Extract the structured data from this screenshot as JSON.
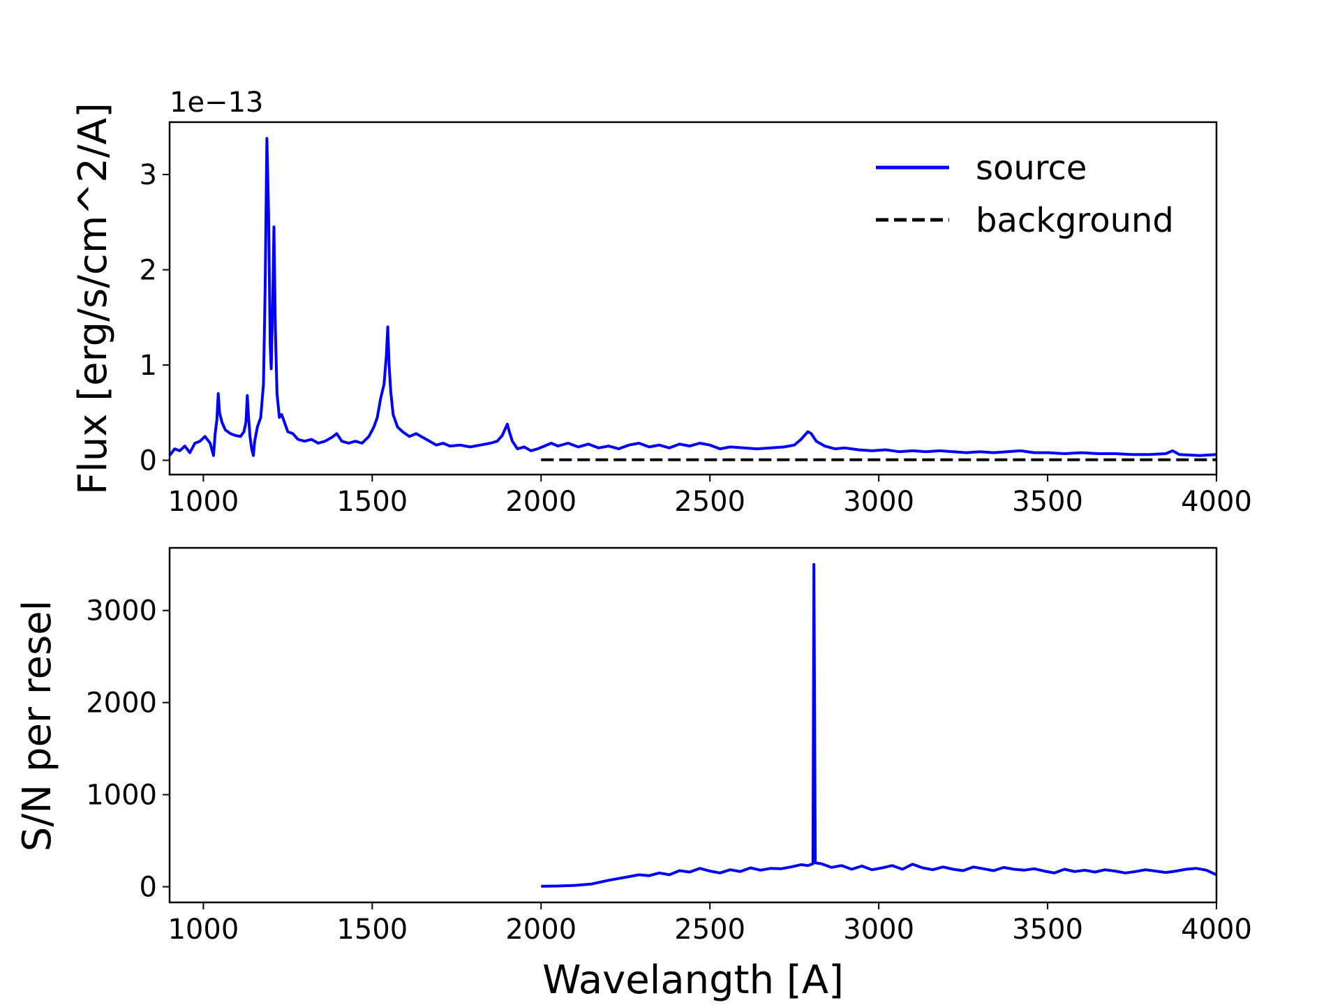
{
  "chart_data": [
    {
      "type": "line",
      "offset_label": "1e−13",
      "xlabel": "",
      "ylabel": "Flux [erg/s/cm^2/A]",
      "xlim": [
        900,
        4000
      ],
      "ylim": [
        -0.15,
        3.55
      ],
      "xticks": [
        1000,
        1500,
        2000,
        2500,
        3000,
        3500,
        4000
      ],
      "xtick_labels": [
        "1000",
        "1500",
        "2000",
        "2500",
        "3000",
        "3500",
        "4000"
      ],
      "yticks": [
        0,
        1,
        2,
        3
      ],
      "ytick_labels": [
        "0",
        "1",
        "2",
        "3"
      ],
      "grid": false,
      "legend_position": "upper-right",
      "series": [
        {
          "name": "source",
          "color": "#0000ff",
          "style": "solid",
          "points": [
            [
              900,
              0.05
            ],
            [
              915,
              0.12
            ],
            [
              930,
              0.1
            ],
            [
              945,
              0.15
            ],
            [
              960,
              0.08
            ],
            [
              975,
              0.18
            ],
            [
              990,
              0.2
            ],
            [
              1005,
              0.25
            ],
            [
              1020,
              0.18
            ],
            [
              1030,
              0.05
            ],
            [
              1035,
              0.28
            ],
            [
              1040,
              0.42
            ],
            [
              1044,
              0.7
            ],
            [
              1048,
              0.5
            ],
            [
              1055,
              0.4
            ],
            [
              1065,
              0.32
            ],
            [
              1080,
              0.28
            ],
            [
              1095,
              0.26
            ],
            [
              1110,
              0.25
            ],
            [
              1120,
              0.3
            ],
            [
              1126,
              0.4
            ],
            [
              1130,
              0.68
            ],
            [
              1134,
              0.45
            ],
            [
              1138,
              0.25
            ],
            [
              1143,
              0.12
            ],
            [
              1148,
              0.05
            ],
            [
              1152,
              0.2
            ],
            [
              1160,
              0.35
            ],
            [
              1170,
              0.45
            ],
            [
              1178,
              0.8
            ],
            [
              1183,
              1.8
            ],
            [
              1188,
              3.38
            ],
            [
              1193,
              2.6
            ],
            [
              1198,
              1.2
            ],
            [
              1201,
              0.96
            ],
            [
              1205,
              1.6
            ],
            [
              1209,
              2.45
            ],
            [
              1213,
              1.4
            ],
            [
              1218,
              0.7
            ],
            [
              1225,
              0.45
            ],
            [
              1232,
              0.48
            ],
            [
              1240,
              0.4
            ],
            [
              1250,
              0.3
            ],
            [
              1265,
              0.28
            ],
            [
              1280,
              0.22
            ],
            [
              1300,
              0.2
            ],
            [
              1320,
              0.22
            ],
            [
              1340,
              0.18
            ],
            [
              1360,
              0.2
            ],
            [
              1380,
              0.24
            ],
            [
              1395,
              0.28
            ],
            [
              1410,
              0.2
            ],
            [
              1430,
              0.18
            ],
            [
              1450,
              0.2
            ],
            [
              1470,
              0.18
            ],
            [
              1490,
              0.25
            ],
            [
              1505,
              0.35
            ],
            [
              1515,
              0.45
            ],
            [
              1525,
              0.65
            ],
            [
              1535,
              0.8
            ],
            [
              1542,
              1.1
            ],
            [
              1546,
              1.4
            ],
            [
              1550,
              1.0
            ],
            [
              1555,
              0.72
            ],
            [
              1562,
              0.48
            ],
            [
              1575,
              0.35
            ],
            [
              1590,
              0.3
            ],
            [
              1610,
              0.25
            ],
            [
              1630,
              0.28
            ],
            [
              1650,
              0.24
            ],
            [
              1670,
              0.2
            ],
            [
              1690,
              0.16
            ],
            [
              1710,
              0.18
            ],
            [
              1730,
              0.15
            ],
            [
              1760,
              0.16
            ],
            [
              1790,
              0.14
            ],
            [
              1820,
              0.16
            ],
            [
              1850,
              0.18
            ],
            [
              1870,
              0.2
            ],
            [
              1885,
              0.26
            ],
            [
              1895,
              0.34
            ],
            [
              1900,
              0.38
            ],
            [
              1906,
              0.3
            ],
            [
              1915,
              0.2
            ],
            [
              1930,
              0.12
            ],
            [
              1950,
              0.14
            ],
            [
              1970,
              0.1
            ],
            [
              1990,
              0.12
            ],
            [
              2010,
              0.15
            ],
            [
              2030,
              0.18
            ],
            [
              2050,
              0.15
            ],
            [
              2080,
              0.18
            ],
            [
              2110,
              0.14
            ],
            [
              2140,
              0.17
            ],
            [
              2170,
              0.13
            ],
            [
              2200,
              0.15
            ],
            [
              2230,
              0.12
            ],
            [
              2260,
              0.16
            ],
            [
              2290,
              0.18
            ],
            [
              2320,
              0.14
            ],
            [
              2350,
              0.16
            ],
            [
              2380,
              0.13
            ],
            [
              2410,
              0.17
            ],
            [
              2440,
              0.15
            ],
            [
              2470,
              0.18
            ],
            [
              2500,
              0.16
            ],
            [
              2530,
              0.12
            ],
            [
              2560,
              0.14
            ],
            [
              2600,
              0.13
            ],
            [
              2640,
              0.12
            ],
            [
              2680,
              0.13
            ],
            [
              2720,
              0.14
            ],
            [
              2750,
              0.16
            ],
            [
              2770,
              0.22
            ],
            [
              2790,
              0.3
            ],
            [
              2800,
              0.28
            ],
            [
              2815,
              0.2
            ],
            [
              2840,
              0.15
            ],
            [
              2870,
              0.12
            ],
            [
              2900,
              0.13
            ],
            [
              2940,
              0.11
            ],
            [
              2980,
              0.1
            ],
            [
              3020,
              0.11
            ],
            [
              3060,
              0.09
            ],
            [
              3100,
              0.1
            ],
            [
              3140,
              0.09
            ],
            [
              3180,
              0.1
            ],
            [
              3220,
              0.09
            ],
            [
              3260,
              0.08
            ],
            [
              3300,
              0.09
            ],
            [
              3340,
              0.08
            ],
            [
              3380,
              0.09
            ],
            [
              3420,
              0.1
            ],
            [
              3460,
              0.08
            ],
            [
              3500,
              0.08
            ],
            [
              3550,
              0.07
            ],
            [
              3600,
              0.08
            ],
            [
              3650,
              0.07
            ],
            [
              3700,
              0.07
            ],
            [
              3750,
              0.06
            ],
            [
              3800,
              0.06
            ],
            [
              3850,
              0.07
            ],
            [
              3870,
              0.1
            ],
            [
              3890,
              0.06
            ],
            [
              3950,
              0.05
            ],
            [
              4000,
              0.06
            ]
          ]
        },
        {
          "name": "background",
          "color": "#000000",
          "style": "dashed",
          "points": [
            [
              2000,
              0.005
            ],
            [
              4000,
              0.005
            ]
          ]
        }
      ]
    },
    {
      "type": "line",
      "xlabel": "Wavelangth [A]",
      "ylabel": "S/N per resel",
      "xlim": [
        900,
        4000
      ],
      "ylim": [
        -170,
        3680
      ],
      "xticks": [
        1000,
        1500,
        2000,
        2500,
        3000,
        3500,
        4000
      ],
      "xtick_labels": [
        "1000",
        "1500",
        "2000",
        "2500",
        "3000",
        "3500",
        "4000"
      ],
      "yticks": [
        0,
        1000,
        2000,
        3000
      ],
      "ytick_labels": [
        "0",
        "1000",
        "2000",
        "3000"
      ],
      "grid": false,
      "series": [
        {
          "color": "#0000ff",
          "style": "solid",
          "points": [
            [
              2000,
              5
            ],
            [
              2050,
              8
            ],
            [
              2100,
              15
            ],
            [
              2150,
              30
            ],
            [
              2200,
              70
            ],
            [
              2230,
              90
            ],
            [
              2260,
              110
            ],
            [
              2290,
              130
            ],
            [
              2320,
              120
            ],
            [
              2350,
              150
            ],
            [
              2380,
              130
            ],
            [
              2410,
              175
            ],
            [
              2440,
              160
            ],
            [
              2470,
              200
            ],
            [
              2500,
              170
            ],
            [
              2530,
              150
            ],
            [
              2560,
              185
            ],
            [
              2590,
              165
            ],
            [
              2620,
              205
            ],
            [
              2650,
              180
            ],
            [
              2680,
              200
            ],
            [
              2710,
              195
            ],
            [
              2740,
              215
            ],
            [
              2770,
              240
            ],
            [
              2790,
              230
            ],
            [
              2805,
              250
            ],
            [
              2808,
              3500
            ],
            [
              2812,
              260
            ],
            [
              2830,
              250
            ],
            [
              2860,
              210
            ],
            [
              2890,
              230
            ],
            [
              2920,
              190
            ],
            [
              2950,
              225
            ],
            [
              2980,
              185
            ],
            [
              3010,
              205
            ],
            [
              3040,
              230
            ],
            [
              3070,
              190
            ],
            [
              3100,
              245
            ],
            [
              3130,
              205
            ],
            [
              3160,
              185
            ],
            [
              3190,
              215
            ],
            [
              3220,
              190
            ],
            [
              3250,
              175
            ],
            [
              3280,
              215
            ],
            [
              3310,
              195
            ],
            [
              3340,
              175
            ],
            [
              3370,
              210
            ],
            [
              3400,
              190
            ],
            [
              3430,
              180
            ],
            [
              3460,
              195
            ],
            [
              3490,
              170
            ],
            [
              3520,
              150
            ],
            [
              3550,
              190
            ],
            [
              3580,
              165
            ],
            [
              3610,
              180
            ],
            [
              3640,
              160
            ],
            [
              3670,
              185
            ],
            [
              3700,
              170
            ],
            [
              3730,
              150
            ],
            [
              3760,
              165
            ],
            [
              3790,
              185
            ],
            [
              3820,
              170
            ],
            [
              3850,
              155
            ],
            [
              3880,
              170
            ],
            [
              3910,
              190
            ],
            [
              3940,
              200
            ],
            [
              3970,
              180
            ],
            [
              4000,
              130
            ]
          ]
        }
      ]
    }
  ]
}
